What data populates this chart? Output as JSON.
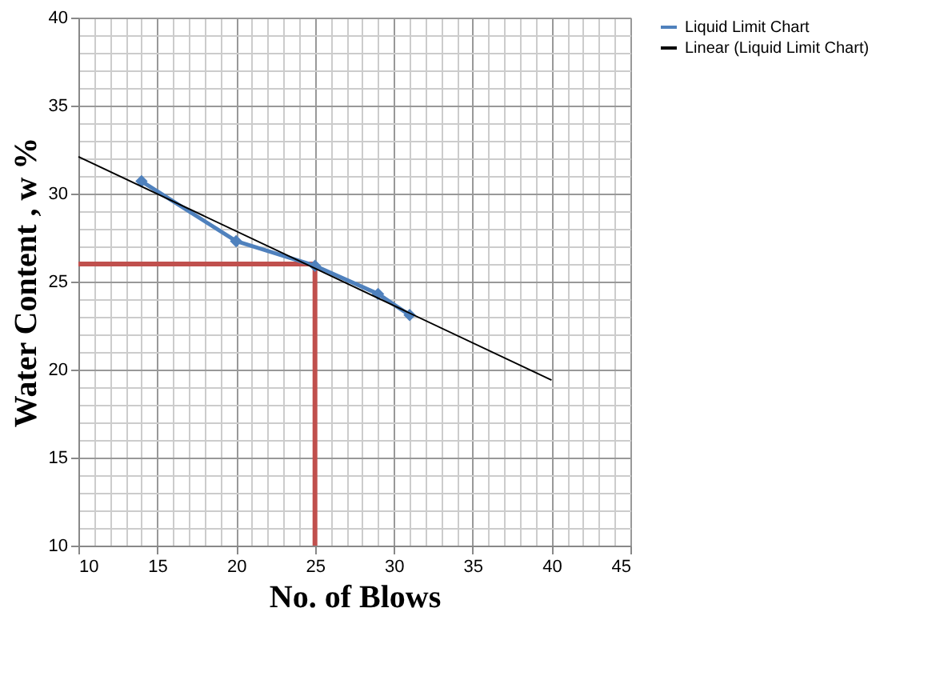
{
  "chart_data": {
    "type": "line",
    "xlabel": "No. of Blows",
    "ylabel": "Water Content , w %",
    "xlim": [
      10,
      45
    ],
    "xticks": [
      10,
      15,
      20,
      25,
      30,
      35,
      40,
      45
    ],
    "ylim": [
      10,
      40
    ],
    "yticks": [
      10,
      15,
      20,
      25,
      30,
      35,
      40
    ],
    "grid": true,
    "legend": "right",
    "series": [
      {
        "name": "Liquid Limit Chart",
        "color": "#4f81bd",
        "marker": "diamond",
        "x": [
          14,
          20,
          25,
          29,
          31
        ],
        "values": [
          30.7,
          27.3,
          25.9,
          24.3,
          23.1
        ]
      },
      {
        "name": "Linear (Liquid Limit Chart)",
        "color": "#000000",
        "marker": "none",
        "x": [
          10,
          40
        ],
        "values": [
          32.1,
          19.4
        ]
      },
      {
        "color": "#c0504d",
        "marker": "none",
        "x": [
          10,
          25,
          25
        ],
        "values": [
          26,
          26,
          10
        ]
      }
    ]
  }
}
